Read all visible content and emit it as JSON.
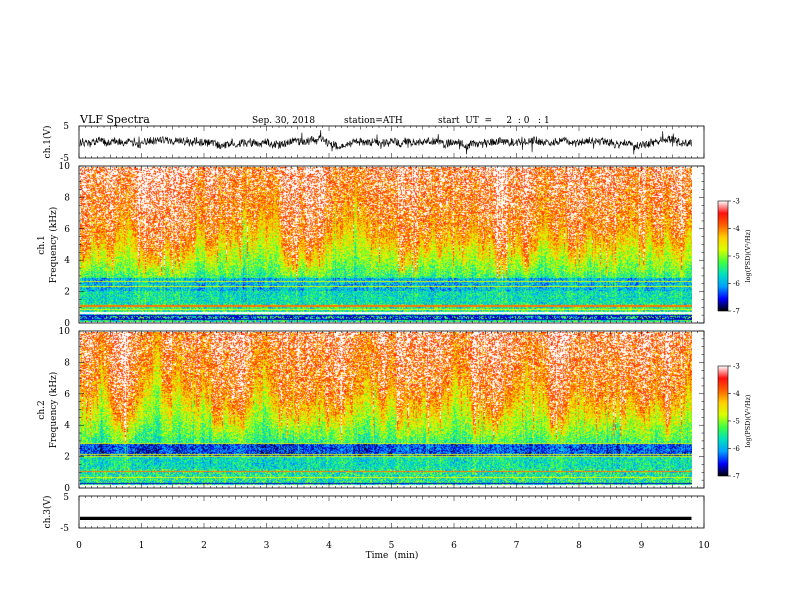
{
  "header": {
    "title": "VLF  Spectra",
    "date": "Sep. 30, 2018",
    "station": "station=ATH",
    "start_ut": "start  UT  =     2  : 0   : 1"
  },
  "colors": {
    "spectrogram_scale": [
      "#000000",
      "#0000ff",
      "#00a0ff",
      "#00e0c0",
      "#40ff40",
      "#d8ff00",
      "#ffd000",
      "#ff6000",
      "#ff1010",
      "#ffffff"
    ],
    "trace": "#000000"
  },
  "chart_data": [
    {
      "id": "ch1-waveform",
      "type": "line",
      "ylabel": "ch.1(V)",
      "ylim": [
        -5,
        5
      ],
      "yticks": [
        "5",
        "-5"
      ],
      "xlim": [
        0,
        10
      ],
      "description_series": "noisy voltage trace centered near 0 V, amplitude about ±2 V"
    },
    {
      "id": "ch1-spectrogram",
      "type": "heatmap",
      "ylabel": "ch.1\nFrequency (kHz)",
      "ylabel_lines": [
        "ch.1",
        "Frequency (kHz)"
      ],
      "ylim": [
        0,
        10
      ],
      "yticks": [
        "0",
        "2",
        "4",
        "6",
        "8",
        "10"
      ],
      "xlim": [
        0,
        10
      ],
      "data_extent_min": 9.8,
      "colorbar": {
        "label": "log(PSD)(V²/Hz)",
        "range": [
          -7,
          -3
        ],
        "ticks": [
          "-3",
          "-4",
          "-5",
          "-6",
          "-7"
        ]
      }
    },
    {
      "id": "ch2-spectrogram",
      "type": "heatmap",
      "ylabel_lines": [
        "ch.2",
        "Frequency (kHz)"
      ],
      "ylim": [
        0,
        10
      ],
      "yticks": [
        "0",
        "2",
        "4",
        "6",
        "8",
        "10"
      ],
      "xlim": [
        0,
        10
      ],
      "data_extent_min": 9.8,
      "colorbar": {
        "label": "log(PSD)(V²/Hz)",
        "range": [
          -7,
          -3
        ],
        "ticks": [
          "-3",
          "-4",
          "-5",
          "-6",
          "-7"
        ]
      }
    },
    {
      "id": "ch3-waveform",
      "type": "line",
      "ylabel": "ch.3(V)",
      "ylim": [
        -5,
        5
      ],
      "yticks": [
        "5",
        "-5"
      ],
      "xlim": [
        0,
        10
      ],
      "constant_value": -2
    }
  ],
  "xaxis": {
    "label": "Time  (min)",
    "ticks": [
      "0",
      "1",
      "2",
      "3",
      "4",
      "5",
      "6",
      "7",
      "8",
      "9",
      "10"
    ]
  }
}
